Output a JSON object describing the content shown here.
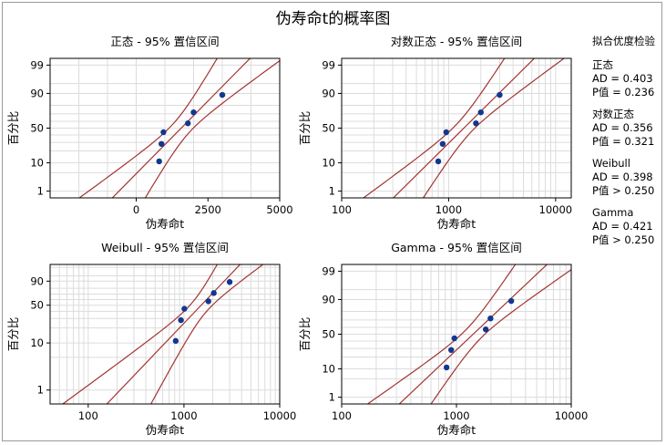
{
  "title": "伪寿命t的概率图",
  "colors": {
    "points": "#12378f",
    "fit": "#a33434",
    "grid": "#dcdcdc",
    "axis": "#000000"
  },
  "goodness_of_fit": {
    "header": "拟合优度检验",
    "groups": [
      {
        "name": "正态",
        "ad": "AD = 0.403",
        "p": "P值 = 0.236"
      },
      {
        "name": "对数正态",
        "ad": "AD = 0.356",
        "p": "P值 = 0.321"
      },
      {
        "name": "Weibull",
        "ad": "AD = 0.398",
        "p": "P值 > 0.250"
      },
      {
        "name": "Gamma",
        "ad": "AD = 0.421",
        "p": "P值 > 0.250"
      }
    ]
  },
  "chart_data": [
    {
      "type": "scatter",
      "subtype": "probability-plot",
      "title": "正态 - 95% 置信区间",
      "xlabel": "伪寿命t",
      "ylabel": "百分比",
      "x_scale": "linear",
      "xlim": [
        -3000,
        5000
      ],
      "x_ticks": [
        "0",
        "2500",
        "5000"
      ],
      "y_ticks": [
        "1",
        "10",
        "50",
        "90",
        "99"
      ],
      "points": [
        [
          800,
          11
        ],
        [
          880,
          28
        ],
        [
          950,
          44
        ],
        [
          1800,
          57
        ],
        [
          2000,
          72
        ],
        [
          3000,
          89
        ]
      ]
    },
    {
      "type": "scatter",
      "subtype": "probability-plot",
      "title": "对数正态 - 95% 置信区间",
      "xlabel": "伪寿命t",
      "ylabel": "百分比",
      "x_scale": "log",
      "xlim": [
        100,
        14000
      ],
      "x_ticks": [
        "100",
        "1000",
        "10000"
      ],
      "y_ticks": [
        "1",
        "10",
        "50",
        "90",
        "99"
      ],
      "points": [
        [
          800,
          11
        ],
        [
          880,
          28
        ],
        [
          950,
          44
        ],
        [
          1800,
          57
        ],
        [
          2000,
          72
        ],
        [
          3000,
          89
        ]
      ]
    },
    {
      "type": "scatter",
      "subtype": "probability-plot",
      "title": "Weibull - 95% 置信区间",
      "xlabel": "伪寿命t",
      "ylabel": "百分比",
      "x_scale": "log",
      "xlim": [
        40,
        10000
      ],
      "x_ticks": [
        "100",
        "1000",
        "10000"
      ],
      "y_ticks": [
        "1",
        "10",
        "50",
        "90"
      ],
      "points": [
        [
          820,
          11
        ],
        [
          930,
          28
        ],
        [
          1010,
          44
        ],
        [
          1800,
          57
        ],
        [
          2050,
          72
        ],
        [
          3000,
          89
        ]
      ]
    },
    {
      "type": "scatter",
      "subtype": "probability-plot",
      "title": "Gamma - 95% 置信区间",
      "xlabel": "伪寿命t",
      "ylabel": "百分比",
      "x_scale": "log",
      "xlim": [
        100,
        10000
      ],
      "x_ticks": [
        "100",
        "1000",
        "10000"
      ],
      "y_ticks": [
        "1",
        "10",
        "50",
        "90",
        "99"
      ],
      "points": [
        [
          820,
          11
        ],
        [
          900,
          28
        ],
        [
          960,
          44
        ],
        [
          1800,
          57
        ],
        [
          1980,
          72
        ],
        [
          3000,
          89
        ]
      ]
    }
  ]
}
